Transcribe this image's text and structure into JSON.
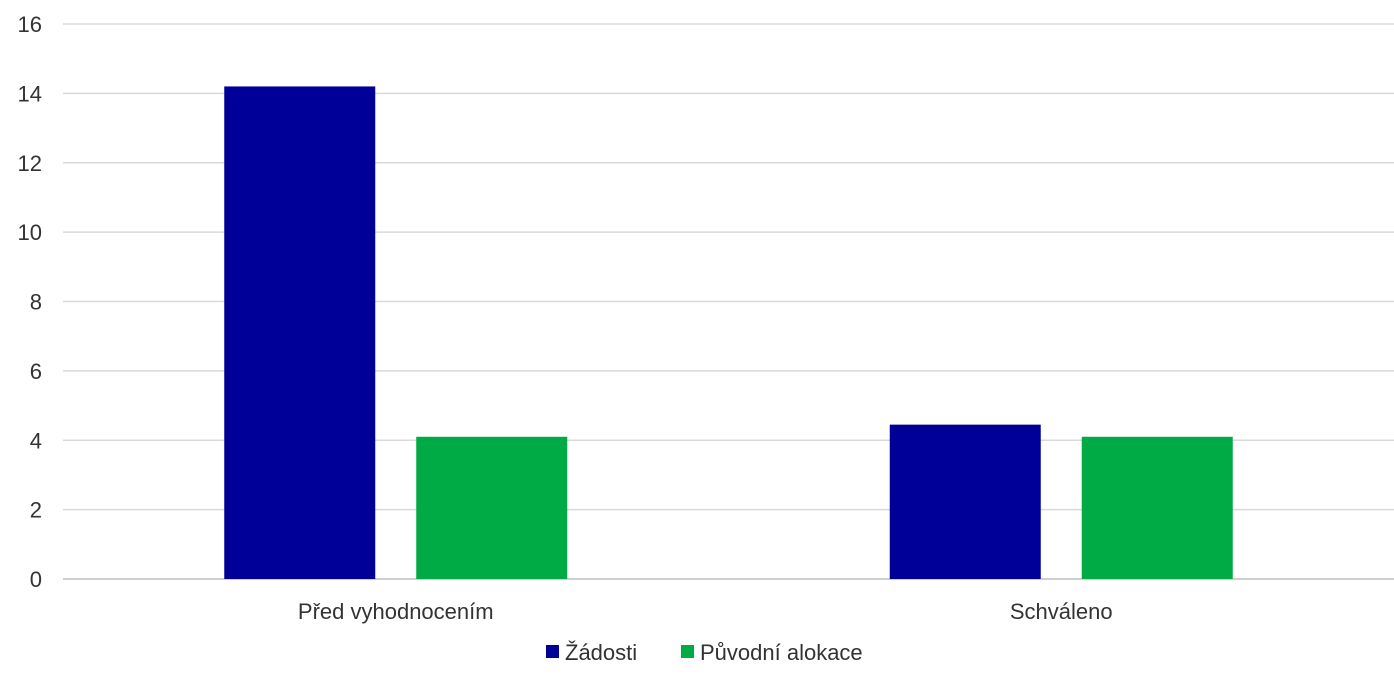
{
  "chart_data": {
    "type": "bar",
    "categories": [
      "Před vyhodnocením",
      "Schváleno"
    ],
    "series": [
      {
        "name": "Žádosti",
        "values": [
          14.2,
          4.45
        ],
        "color": "#000099"
      },
      {
        "name": "Původní alokace",
        "values": [
          4.1,
          4.1
        ],
        "color": "#00AA44"
      }
    ],
    "title": "",
    "xlabel": "",
    "ylabel": "",
    "ylim": [
      0,
      16
    ],
    "yticks": [
      0,
      2,
      4,
      6,
      8,
      10,
      12,
      14,
      16
    ],
    "grid": true,
    "legend": "bottom-center",
    "gridline_color": "#D9D9D9",
    "axis_color": "#BFBFBF"
  }
}
